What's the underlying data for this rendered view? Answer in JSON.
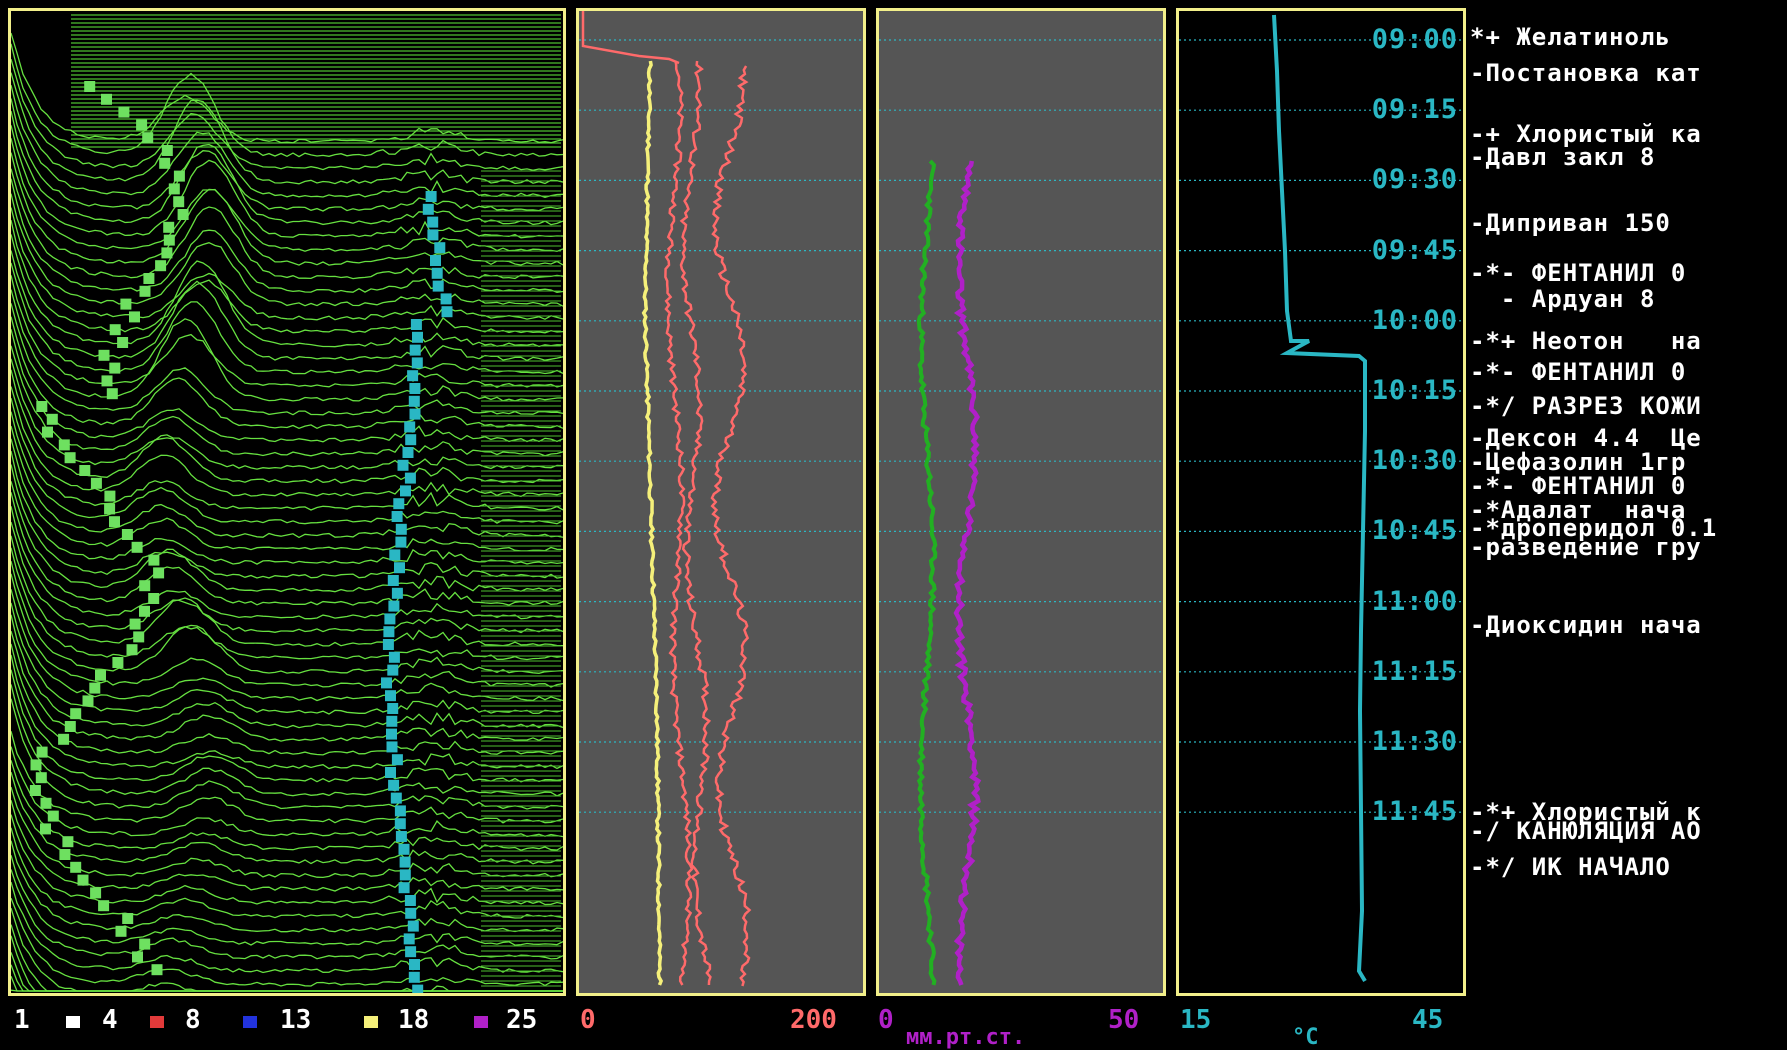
{
  "legend": {
    "items": [
      {
        "label": "1",
        "color": "#ffffff"
      },
      {
        "label": "4",
        "color": "#e23a3a"
      },
      {
        "label": "8",
        "color": "#2233dd"
      },
      {
        "label": "13",
        "color": "#f5f07a"
      },
      {
        "label": "18",
        "color": "#b020c8"
      },
      {
        "label": "25",
        "color": ""
      }
    ]
  },
  "axes": {
    "bp": {
      "min": "0",
      "max": "200",
      "unit": "мм.рт.ст."
    },
    "cvp": {
      "min": "0",
      "max": "50"
    },
    "temp": {
      "min": "15",
      "max": "45",
      "unit": "°C"
    }
  },
  "times": [
    "09:00",
    "09:15",
    "09:30",
    "09:45",
    "10:00",
    "10:15",
    "10:30",
    "10:45",
    "11:00",
    "11:15",
    "11:30",
    "11:45"
  ],
  "events": [
    {
      "text": "*+ Желатиноль"
    },
    {
      "text": "-Постановка кат"
    },
    {
      "text": "-+ Хлористый ка"
    },
    {
      "text": "-Давл закл 8"
    },
    {
      "text": "-Диприван 150"
    },
    {
      "text": "-*- ФЕНТАНИЛ 0\n  - Ардуан 8"
    },
    {
      "text": "-*+ Неотон   на"
    },
    {
      "text": "-*- ФЕНТАНИЛ 0"
    },
    {
      "text": "-*/ РАЗРЕЗ КОЖИ"
    },
    {
      "text": "-Дексон 4.4  Це"
    },
    {
      "text": "-Цефазолин 1гр"
    },
    {
      "text": "-*- ФЕНТАНИЛ 0"
    },
    {
      "text": "-*Адалат  нача"
    },
    {
      "text": "-*дроперидол 0.1"
    },
    {
      "text": "-разведение гру"
    },
    {
      "text": "-Диоксидин нача"
    },
    {
      "text": "-*+ Хлористый к"
    },
    {
      "text": "-/ КАНЮЛЯЦИЯ АО"
    },
    {
      "text": "-*/ ИК НАЧАЛО"
    }
  ],
  "colors": {
    "frame": "#f2ef8a",
    "spectrum": "#66e040",
    "sef": "#2ab7c4",
    "systolic": "#ff6a6a",
    "mean": "#f5f07a",
    "cvp": "#22b022",
    "pap": "#b020c8",
    "temp": "#2ab7c4"
  }
}
